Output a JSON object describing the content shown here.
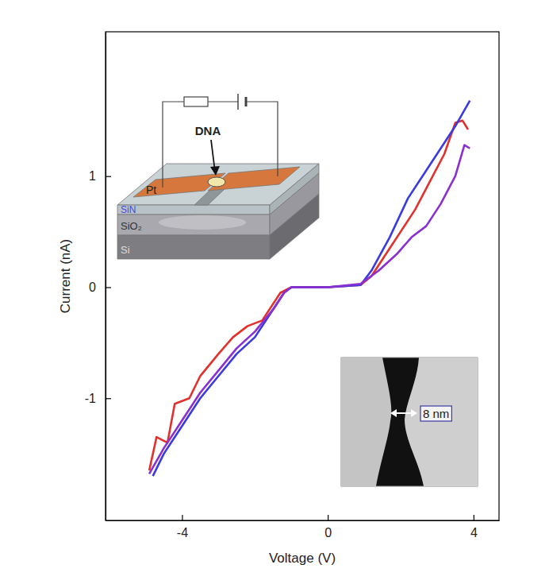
{
  "chart_data": {
    "type": "line",
    "x_label": "Voltage (V)",
    "y_label": "Current (nA)",
    "xlim": [
      -6.1,
      4.7
    ],
    "ylim": [
      -2.1,
      2.3
    ],
    "xticks": [
      -4,
      0,
      4
    ],
    "yticks": [
      -1,
      0,
      1
    ],
    "line_style": "solid",
    "series": [
      {
        "color": "#e2302c",
        "x": [
          -4.9,
          -4.7,
          -4.4,
          -4.2,
          -3.8,
          -3.5,
          -3.0,
          -2.6,
          -2.2,
          -1.8,
          -1.3,
          -1.0,
          0,
          0.9,
          1.2,
          1.6,
          2.0,
          2.4,
          2.8,
          3.2,
          3.5,
          3.7,
          3.85
        ],
        "values": [
          -1.65,
          -1.35,
          -1.4,
          -1.05,
          -1.0,
          -0.8,
          -0.6,
          -0.45,
          -0.35,
          -0.3,
          -0.05,
          0,
          0,
          0.02,
          0.1,
          0.3,
          0.5,
          0.7,
          0.95,
          1.2,
          1.48,
          1.5,
          1.42
        ]
      },
      {
        "color": "#3a3ae0",
        "x": [
          -4.8,
          -4.5,
          -4.0,
          -3.5,
          -3.0,
          -2.5,
          -2.0,
          -1.5,
          -1.2,
          -1.0,
          0,
          0.9,
          1.2,
          1.7,
          2.2,
          2.7,
          3.1,
          3.5,
          3.9
        ],
        "values": [
          -1.7,
          -1.5,
          -1.25,
          -1.0,
          -0.8,
          -0.6,
          -0.45,
          -0.2,
          -0.05,
          0,
          0,
          0.02,
          0.15,
          0.45,
          0.8,
          1.05,
          1.25,
          1.45,
          1.68
        ]
      },
      {
        "color": "#8a2fd0",
        "x": [
          -4.9,
          -4.5,
          -4.0,
          -3.5,
          -3.0,
          -2.5,
          -2.0,
          -1.5,
          -1.2,
          -1.0,
          0,
          0.9,
          1.4,
          1.9,
          2.3,
          2.7,
          3.1,
          3.5,
          3.75,
          3.9
        ],
        "values": [
          -1.68,
          -1.45,
          -1.2,
          -0.95,
          -0.75,
          -0.55,
          -0.4,
          -0.2,
          -0.05,
          0,
          0,
          0.03,
          0.15,
          0.3,
          0.45,
          0.55,
          0.75,
          1.0,
          1.28,
          1.25
        ]
      }
    ],
    "annotations": [
      "DNA",
      "Pt",
      "SiN",
      "SiO₂",
      "Si",
      "8 nm"
    ]
  }
}
